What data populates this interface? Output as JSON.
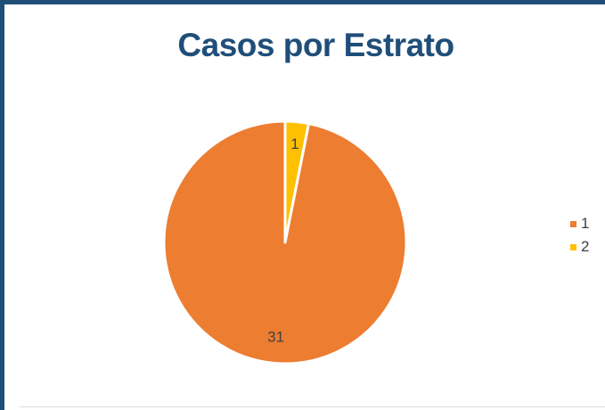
{
  "chart_data": {
    "type": "pie",
    "title": "Casos por Estrato",
    "categories": [
      "1",
      "2"
    ],
    "values": [
      31,
      1
    ],
    "data_labels": [
      "31",
      "1"
    ],
    "colors": [
      "#ED7D31",
      "#FFC000"
    ],
    "legend_position": "right"
  },
  "legend": {
    "items": [
      {
        "label": "1",
        "color": "#ED7D31"
      },
      {
        "label": "2",
        "color": "#FFC000"
      }
    ]
  }
}
